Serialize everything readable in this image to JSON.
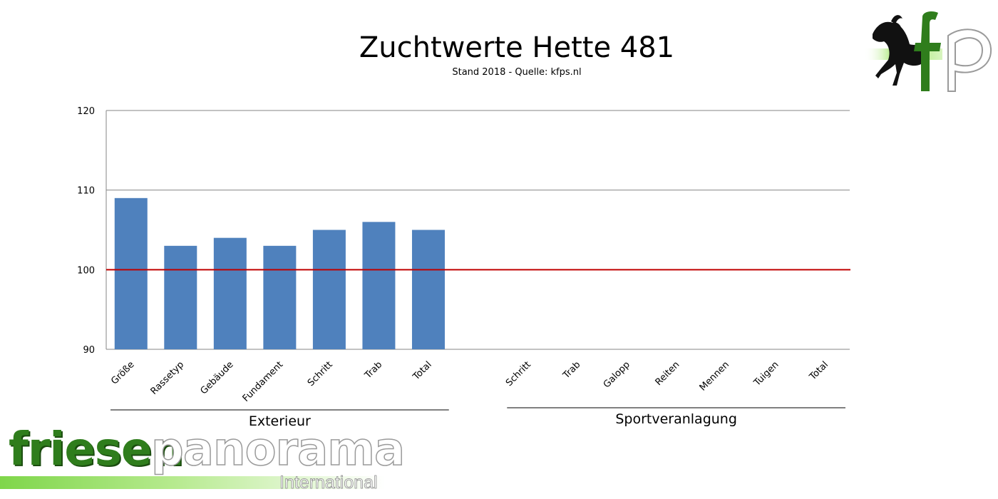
{
  "chart_data": {
    "type": "bar",
    "title": "Zuchtwerte Hette 481",
    "subtitle": "Stand 2018 - Quelle: kfps.nl",
    "categories": [
      "Größe",
      "Rassetyp",
      "Gebäude",
      "Fundament",
      "Schritt",
      "Trab",
      "Total",
      "Schritt",
      "Trab",
      "Galopp",
      "Reiten",
      "Mennen",
      "Tuigen",
      "Total"
    ],
    "values": [
      109,
      103,
      104,
      103,
      105,
      106,
      105,
      null,
      null,
      null,
      null,
      null,
      null,
      null
    ],
    "groups": [
      {
        "label": "Exterieur",
        "start": 0,
        "end": 6
      },
      {
        "label": "Sportveranlagung",
        "start": 7,
        "end": 13
      }
    ],
    "ylim": [
      90,
      120
    ],
    "yticks": [
      90,
      100,
      110,
      120
    ],
    "reference_line": 100,
    "grid": true,
    "legend": "none",
    "colors": {
      "bar": "#4f81bd",
      "reference": "#c00000",
      "grid": "#868686"
    }
  },
  "logos": {
    "kfp": "fp",
    "friesenpanorama": [
      "friesen",
      "panorama",
      "International"
    ]
  }
}
